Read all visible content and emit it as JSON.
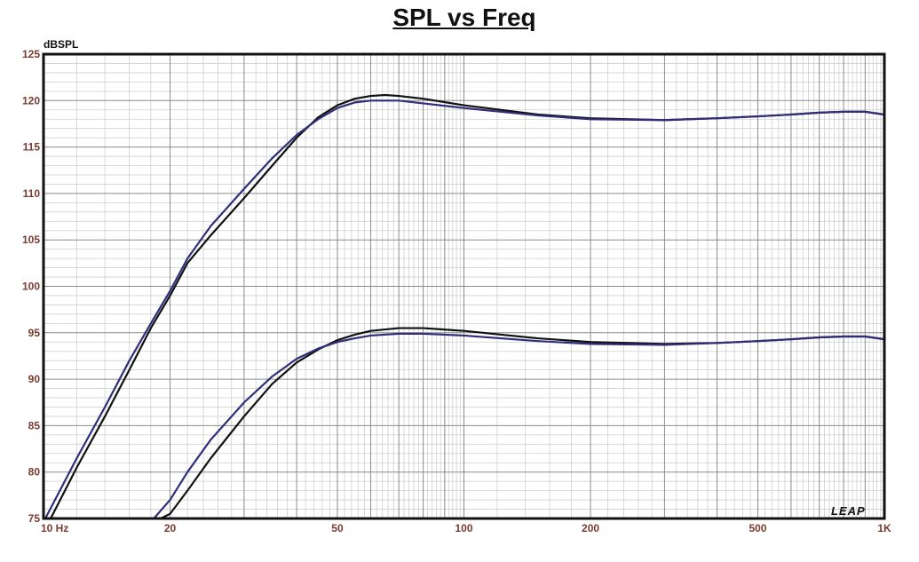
{
  "chart_data": {
    "type": "line",
    "title": "SPL vs Freq",
    "ylabel": "dBSPL",
    "x_scale": "log",
    "xlim": [
      10,
      1000
    ],
    "ylim": [
      75,
      125
    ],
    "y_ticks": [
      75,
      80,
      85,
      90,
      95,
      100,
      105,
      110,
      115,
      120,
      125
    ],
    "x_ticks": [
      {
        "value": 10,
        "label": "10  Hz"
      },
      {
        "value": 20,
        "label": "20"
      },
      {
        "value": 50,
        "label": "50"
      },
      {
        "value": 100,
        "label": "100"
      },
      {
        "value": 200,
        "label": "200"
      },
      {
        "value": 500,
        "label": "500"
      },
      {
        "value": 1000,
        "label": "1K"
      }
    ],
    "grid": true,
    "watermark": "LEAP",
    "series": [
      {
        "color": "#111111",
        "points": [
          [
            10.4,
            75
          ],
          [
            12,
            80.5
          ],
          [
            14,
            86
          ],
          [
            16,
            91
          ],
          [
            18,
            95.5
          ],
          [
            20,
            99
          ],
          [
            22,
            102.5
          ],
          [
            25,
            105.5
          ],
          [
            30,
            109.5
          ],
          [
            35,
            113
          ],
          [
            40,
            116
          ],
          [
            45,
            118.2
          ],
          [
            50,
            119.5
          ],
          [
            55,
            120.2
          ],
          [
            60,
            120.5
          ],
          [
            65,
            120.6
          ],
          [
            70,
            120.5
          ],
          [
            80,
            120.2
          ],
          [
            100,
            119.5
          ],
          [
            150,
            118.5
          ],
          [
            200,
            118.1
          ],
          [
            300,
            117.9
          ],
          [
            400,
            118.1
          ],
          [
            500,
            118.3
          ],
          [
            600,
            118.5
          ],
          [
            700,
            118.7
          ],
          [
            800,
            118.8
          ],
          [
            900,
            118.8
          ],
          [
            1000,
            118.5
          ]
        ]
      },
      {
        "color": "#2e2e7a",
        "points": [
          [
            10.1,
            75
          ],
          [
            12,
            81.5
          ],
          [
            14,
            87
          ],
          [
            16,
            92
          ],
          [
            18,
            96
          ],
          [
            20,
            99.5
          ],
          [
            22,
            103
          ],
          [
            25,
            106.5
          ],
          [
            30,
            110.5
          ],
          [
            35,
            113.8
          ],
          [
            40,
            116.3
          ],
          [
            45,
            118
          ],
          [
            50,
            119.2
          ],
          [
            55,
            119.8
          ],
          [
            60,
            120
          ],
          [
            70,
            120
          ],
          [
            80,
            119.7
          ],
          [
            100,
            119.2
          ],
          [
            150,
            118.4
          ],
          [
            200,
            118
          ],
          [
            300,
            117.9
          ],
          [
            400,
            118.1
          ],
          [
            500,
            118.3
          ],
          [
            600,
            118.5
          ],
          [
            700,
            118.7
          ],
          [
            800,
            118.8
          ],
          [
            900,
            118.8
          ],
          [
            1000,
            118.5
          ]
        ]
      },
      {
        "color": "#111111",
        "points": [
          [
            19,
            75
          ],
          [
            20,
            75.5
          ],
          [
            22,
            78
          ],
          [
            25,
            81.5
          ],
          [
            30,
            86
          ],
          [
            35,
            89.5
          ],
          [
            40,
            91.8
          ],
          [
            45,
            93.2
          ],
          [
            50,
            94.2
          ],
          [
            55,
            94.8
          ],
          [
            60,
            95.2
          ],
          [
            70,
            95.5
          ],
          [
            80,
            95.5
          ],
          [
            100,
            95.2
          ],
          [
            150,
            94.4
          ],
          [
            200,
            94
          ],
          [
            300,
            93.8
          ],
          [
            400,
            93.9
          ],
          [
            500,
            94.1
          ],
          [
            600,
            94.3
          ],
          [
            700,
            94.5
          ],
          [
            800,
            94.6
          ],
          [
            900,
            94.6
          ],
          [
            1000,
            94.3
          ]
        ]
      },
      {
        "color": "#2e2e7a",
        "points": [
          [
            18.3,
            75
          ],
          [
            20,
            77
          ],
          [
            22,
            80
          ],
          [
            25,
            83.5
          ],
          [
            30,
            87.5
          ],
          [
            35,
            90.3
          ],
          [
            40,
            92.2
          ],
          [
            45,
            93.3
          ],
          [
            50,
            94
          ],
          [
            55,
            94.4
          ],
          [
            60,
            94.7
          ],
          [
            70,
            94.9
          ],
          [
            80,
            94.9
          ],
          [
            100,
            94.7
          ],
          [
            150,
            94.1
          ],
          [
            200,
            93.8
          ],
          [
            300,
            93.7
          ],
          [
            400,
            93.9
          ],
          [
            500,
            94.1
          ],
          [
            600,
            94.3
          ],
          [
            700,
            94.5
          ],
          [
            800,
            94.6
          ],
          [
            900,
            94.6
          ],
          [
            1000,
            94.3
          ]
        ]
      },
      {
        "color": "#111111",
        "points": [
          [
            1000,
            118.5
          ],
          [
            1000,
            93.0
          ]
        ]
      },
      {
        "color": "#2e2e7a",
        "points": [
          [
            1000,
            118.0
          ],
          [
            1000,
            93.5
          ]
        ]
      }
    ]
  }
}
